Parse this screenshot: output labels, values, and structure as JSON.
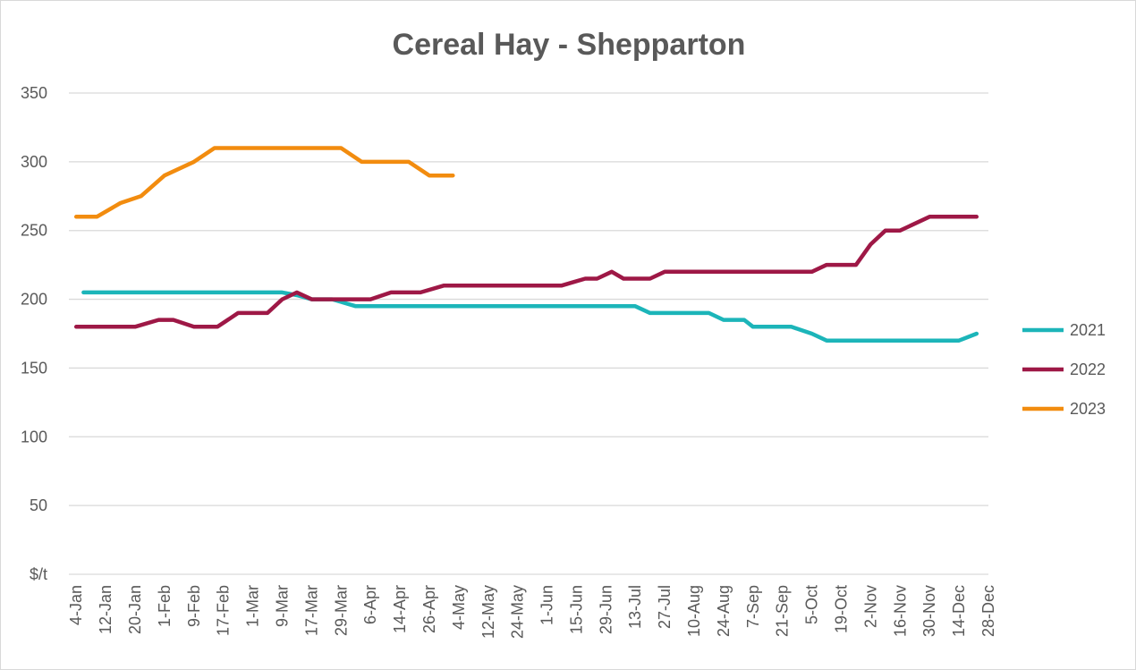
{
  "chart_data": {
    "type": "line",
    "title": "Cereal Hay - Shepparton",
    "xlabel": "",
    "ylabel": "",
    "ylim": [
      0,
      350
    ],
    "y_ticks": [
      "$/t",
      "50",
      "100",
      "150",
      "200",
      "250",
      "300",
      "350"
    ],
    "grid": true,
    "legend_position": "right",
    "categories": [
      "4-Jan",
      "12-Jan",
      "20-Jan",
      "1-Feb",
      "9-Feb",
      "17-Feb",
      "1-Mar",
      "9-Mar",
      "17-Mar",
      "29-Mar",
      "6-Apr",
      "14-Apr",
      "26-Apr",
      "4-May",
      "12-May",
      "24-May",
      "1-Jun",
      "15-Jun",
      "29-Jun",
      "13-Jul",
      "27-Jul",
      "10-Aug",
      "24-Aug",
      "7-Sep",
      "21-Sep",
      "5-Oct",
      "19-Oct",
      "2-Nov",
      "16-Nov",
      "30-Nov",
      "14-Dec",
      "28-Dec"
    ],
    "x_range": [
      -0.25,
      31
    ],
    "series": [
      {
        "name": "2021",
        "color": "#1cb5b9",
        "points": [
          [
            0.25,
            205
          ],
          [
            1,
            205
          ],
          [
            2,
            205
          ],
          [
            3,
            205
          ],
          [
            4,
            205
          ],
          [
            5,
            205
          ],
          [
            6,
            205
          ],
          [
            7,
            205
          ],
          [
            7.5,
            203
          ],
          [
            8,
            200
          ],
          [
            8.7,
            200
          ],
          [
            9.5,
            195
          ],
          [
            10,
            195
          ],
          [
            11,
            195
          ],
          [
            12,
            195
          ],
          [
            13,
            195
          ],
          [
            14,
            195
          ],
          [
            15,
            195
          ],
          [
            16,
            195
          ],
          [
            17,
            195
          ],
          [
            18,
            195
          ],
          [
            19,
            195
          ],
          [
            19.5,
            190
          ],
          [
            20,
            190
          ],
          [
            21,
            190
          ],
          [
            21.5,
            190
          ],
          [
            22,
            185
          ],
          [
            22.7,
            185
          ],
          [
            23,
            180
          ],
          [
            24,
            180
          ],
          [
            24.3,
            180
          ],
          [
            25,
            175
          ],
          [
            25.5,
            170
          ],
          [
            26,
            170
          ],
          [
            27,
            170
          ],
          [
            28,
            170
          ],
          [
            29,
            170
          ],
          [
            30,
            170
          ],
          [
            30.6,
            175
          ]
        ]
      },
      {
        "name": "2022",
        "color": "#9e1846",
        "points": [
          [
            0,
            180
          ],
          [
            1,
            180
          ],
          [
            2,
            180
          ],
          [
            2.8,
            185
          ],
          [
            3.3,
            185
          ],
          [
            4,
            180
          ],
          [
            4.8,
            180
          ],
          [
            5.5,
            190
          ],
          [
            6.5,
            190
          ],
          [
            7,
            200
          ],
          [
            7.5,
            205
          ],
          [
            8,
            200
          ],
          [
            9,
            200
          ],
          [
            10,
            200
          ],
          [
            10.7,
            205
          ],
          [
            11.7,
            205
          ],
          [
            12.5,
            210
          ],
          [
            13.5,
            210
          ],
          [
            14.5,
            210
          ],
          [
            15.5,
            210
          ],
          [
            16.5,
            210
          ],
          [
            17.3,
            215
          ],
          [
            17.7,
            215
          ],
          [
            18.2,
            220
          ],
          [
            18.6,
            215
          ],
          [
            19.5,
            215
          ],
          [
            20,
            220
          ],
          [
            21,
            220
          ],
          [
            22,
            220
          ],
          [
            23,
            220
          ],
          [
            24,
            220
          ],
          [
            25,
            220
          ],
          [
            25.5,
            225
          ],
          [
            26.5,
            225
          ],
          [
            27,
            240
          ],
          [
            27.5,
            250
          ],
          [
            28,
            250
          ],
          [
            29,
            260
          ],
          [
            30,
            260
          ],
          [
            30.6,
            260
          ]
        ]
      },
      {
        "name": "2023",
        "color": "#f28c0f",
        "points": [
          [
            0,
            260
          ],
          [
            0.7,
            260
          ],
          [
            1.5,
            270
          ],
          [
            2.2,
            275
          ],
          [
            3,
            290
          ],
          [
            4,
            300
          ],
          [
            4.7,
            310
          ],
          [
            5.5,
            310
          ],
          [
            6.5,
            310
          ],
          [
            7.5,
            310
          ],
          [
            8.5,
            310
          ],
          [
            9,
            310
          ],
          [
            9.7,
            300
          ],
          [
            10.7,
            300
          ],
          [
            11.3,
            300
          ],
          [
            12,
            290
          ],
          [
            12.8,
            290
          ]
        ]
      }
    ]
  }
}
